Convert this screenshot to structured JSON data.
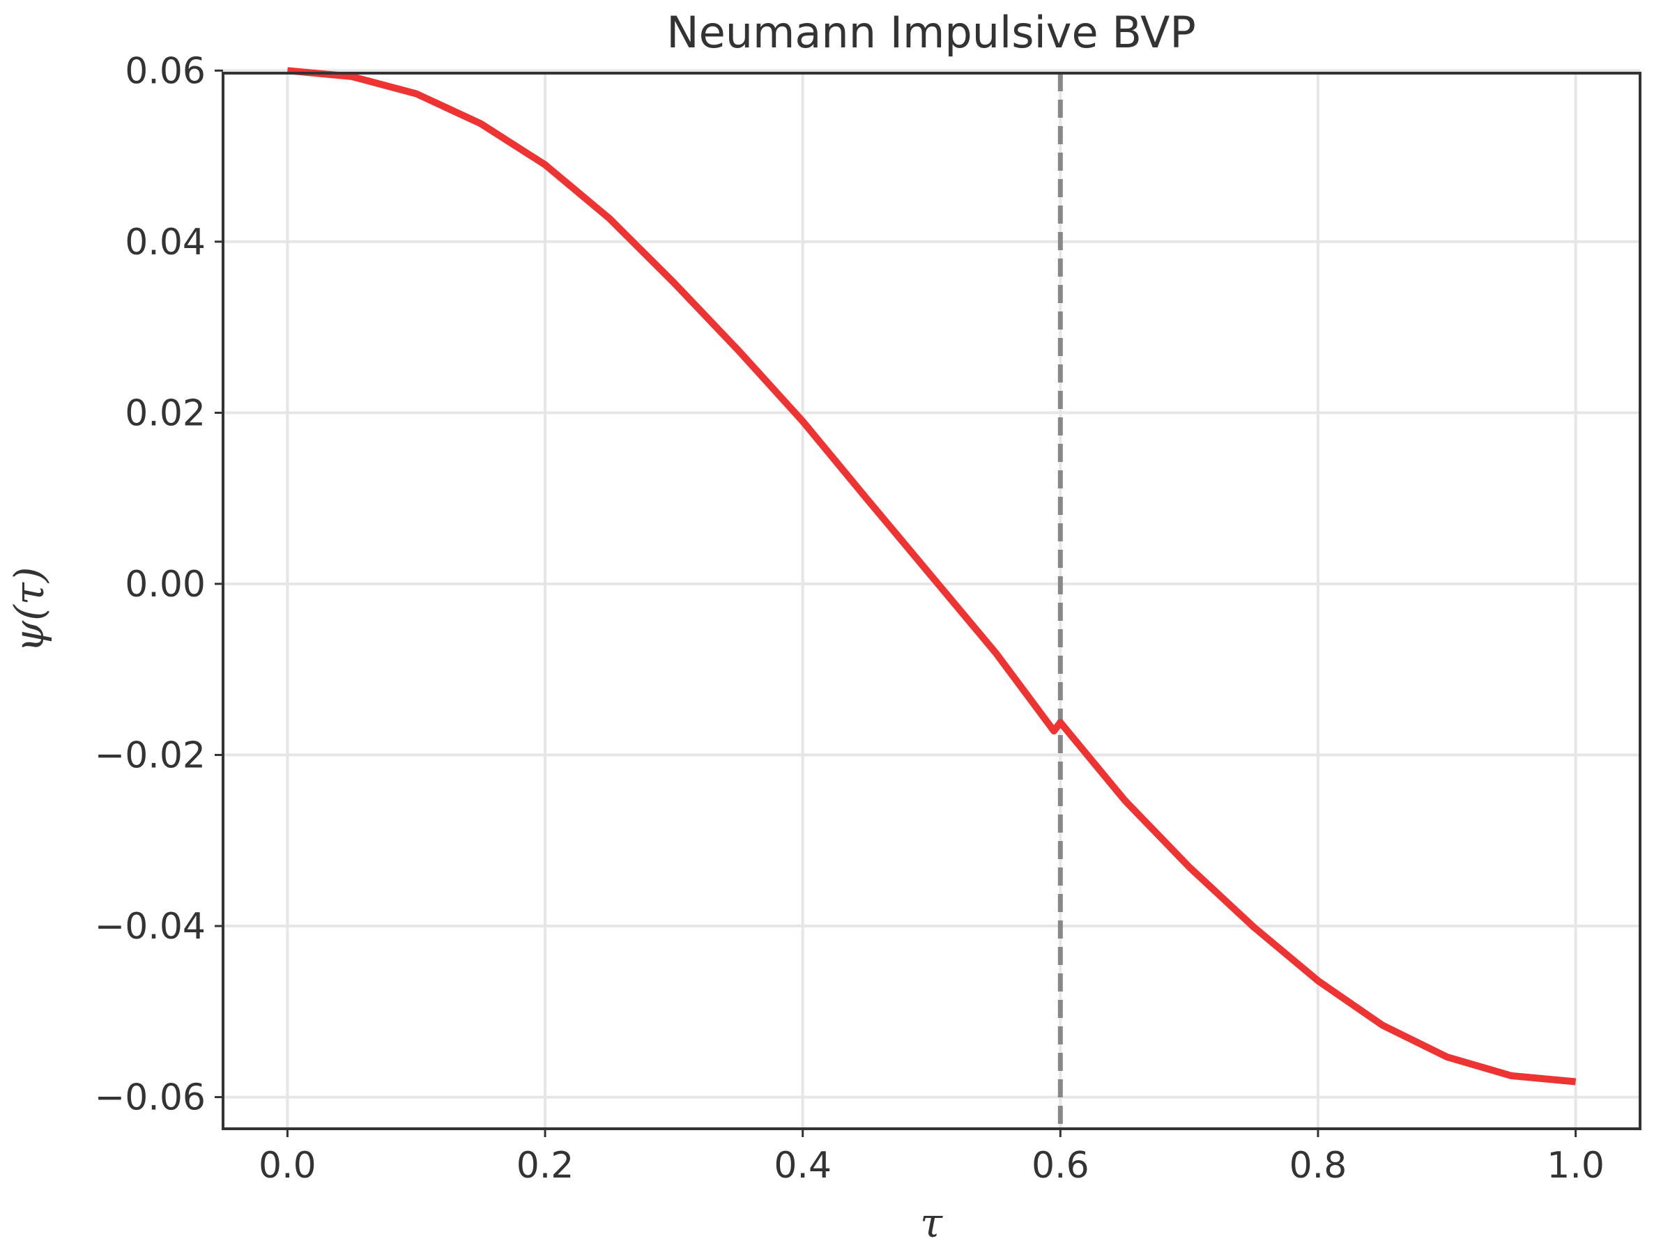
{
  "chart_data": {
    "type": "line",
    "title": "Neumann Impulsive BVP",
    "xlabel": "τ",
    "ylabel": "ψ(τ)",
    "xlim": [
      -0.05,
      1.05
    ],
    "ylim": [
      -0.0637,
      0.0597
    ],
    "x_ticks": [
      0.0,
      0.2,
      0.4,
      0.6,
      0.8,
      1.0
    ],
    "x_tick_labels": [
      "0.0",
      "0.2",
      "0.4",
      "0.6",
      "0.8",
      "1.0"
    ],
    "y_ticks": [
      0.06,
      0.04,
      0.02,
      0.0,
      -0.02,
      -0.04,
      -0.06
    ],
    "y_tick_labels": [
      "0.06",
      "0.04",
      "0.02",
      "0.00",
      "−0.02",
      "−0.04",
      "−0.06"
    ],
    "grid": true,
    "impulse_line": {
      "x": 0.6,
      "style": "dashed",
      "color": "#888888"
    },
    "series": [
      {
        "color": "#ee3333",
        "x": [
          0.0,
          0.05,
          0.1,
          0.15,
          0.2,
          0.25,
          0.3,
          0.35,
          0.4,
          0.45,
          0.5,
          0.55,
          0.595,
          0.6,
          0.65,
          0.7,
          0.75,
          0.8,
          0.85,
          0.9,
          0.95,
          1.0
        ],
        "y": [
          0.06,
          0.0593,
          0.0573,
          0.0538,
          0.049,
          0.0427,
          0.0352,
          0.0273,
          0.019,
          0.0099,
          0.0009,
          -0.0081,
          -0.0172,
          -0.0162,
          -0.0253,
          -0.0331,
          -0.0401,
          -0.0464,
          -0.0516,
          -0.0553,
          -0.0575,
          -0.0582
        ]
      }
    ]
  }
}
